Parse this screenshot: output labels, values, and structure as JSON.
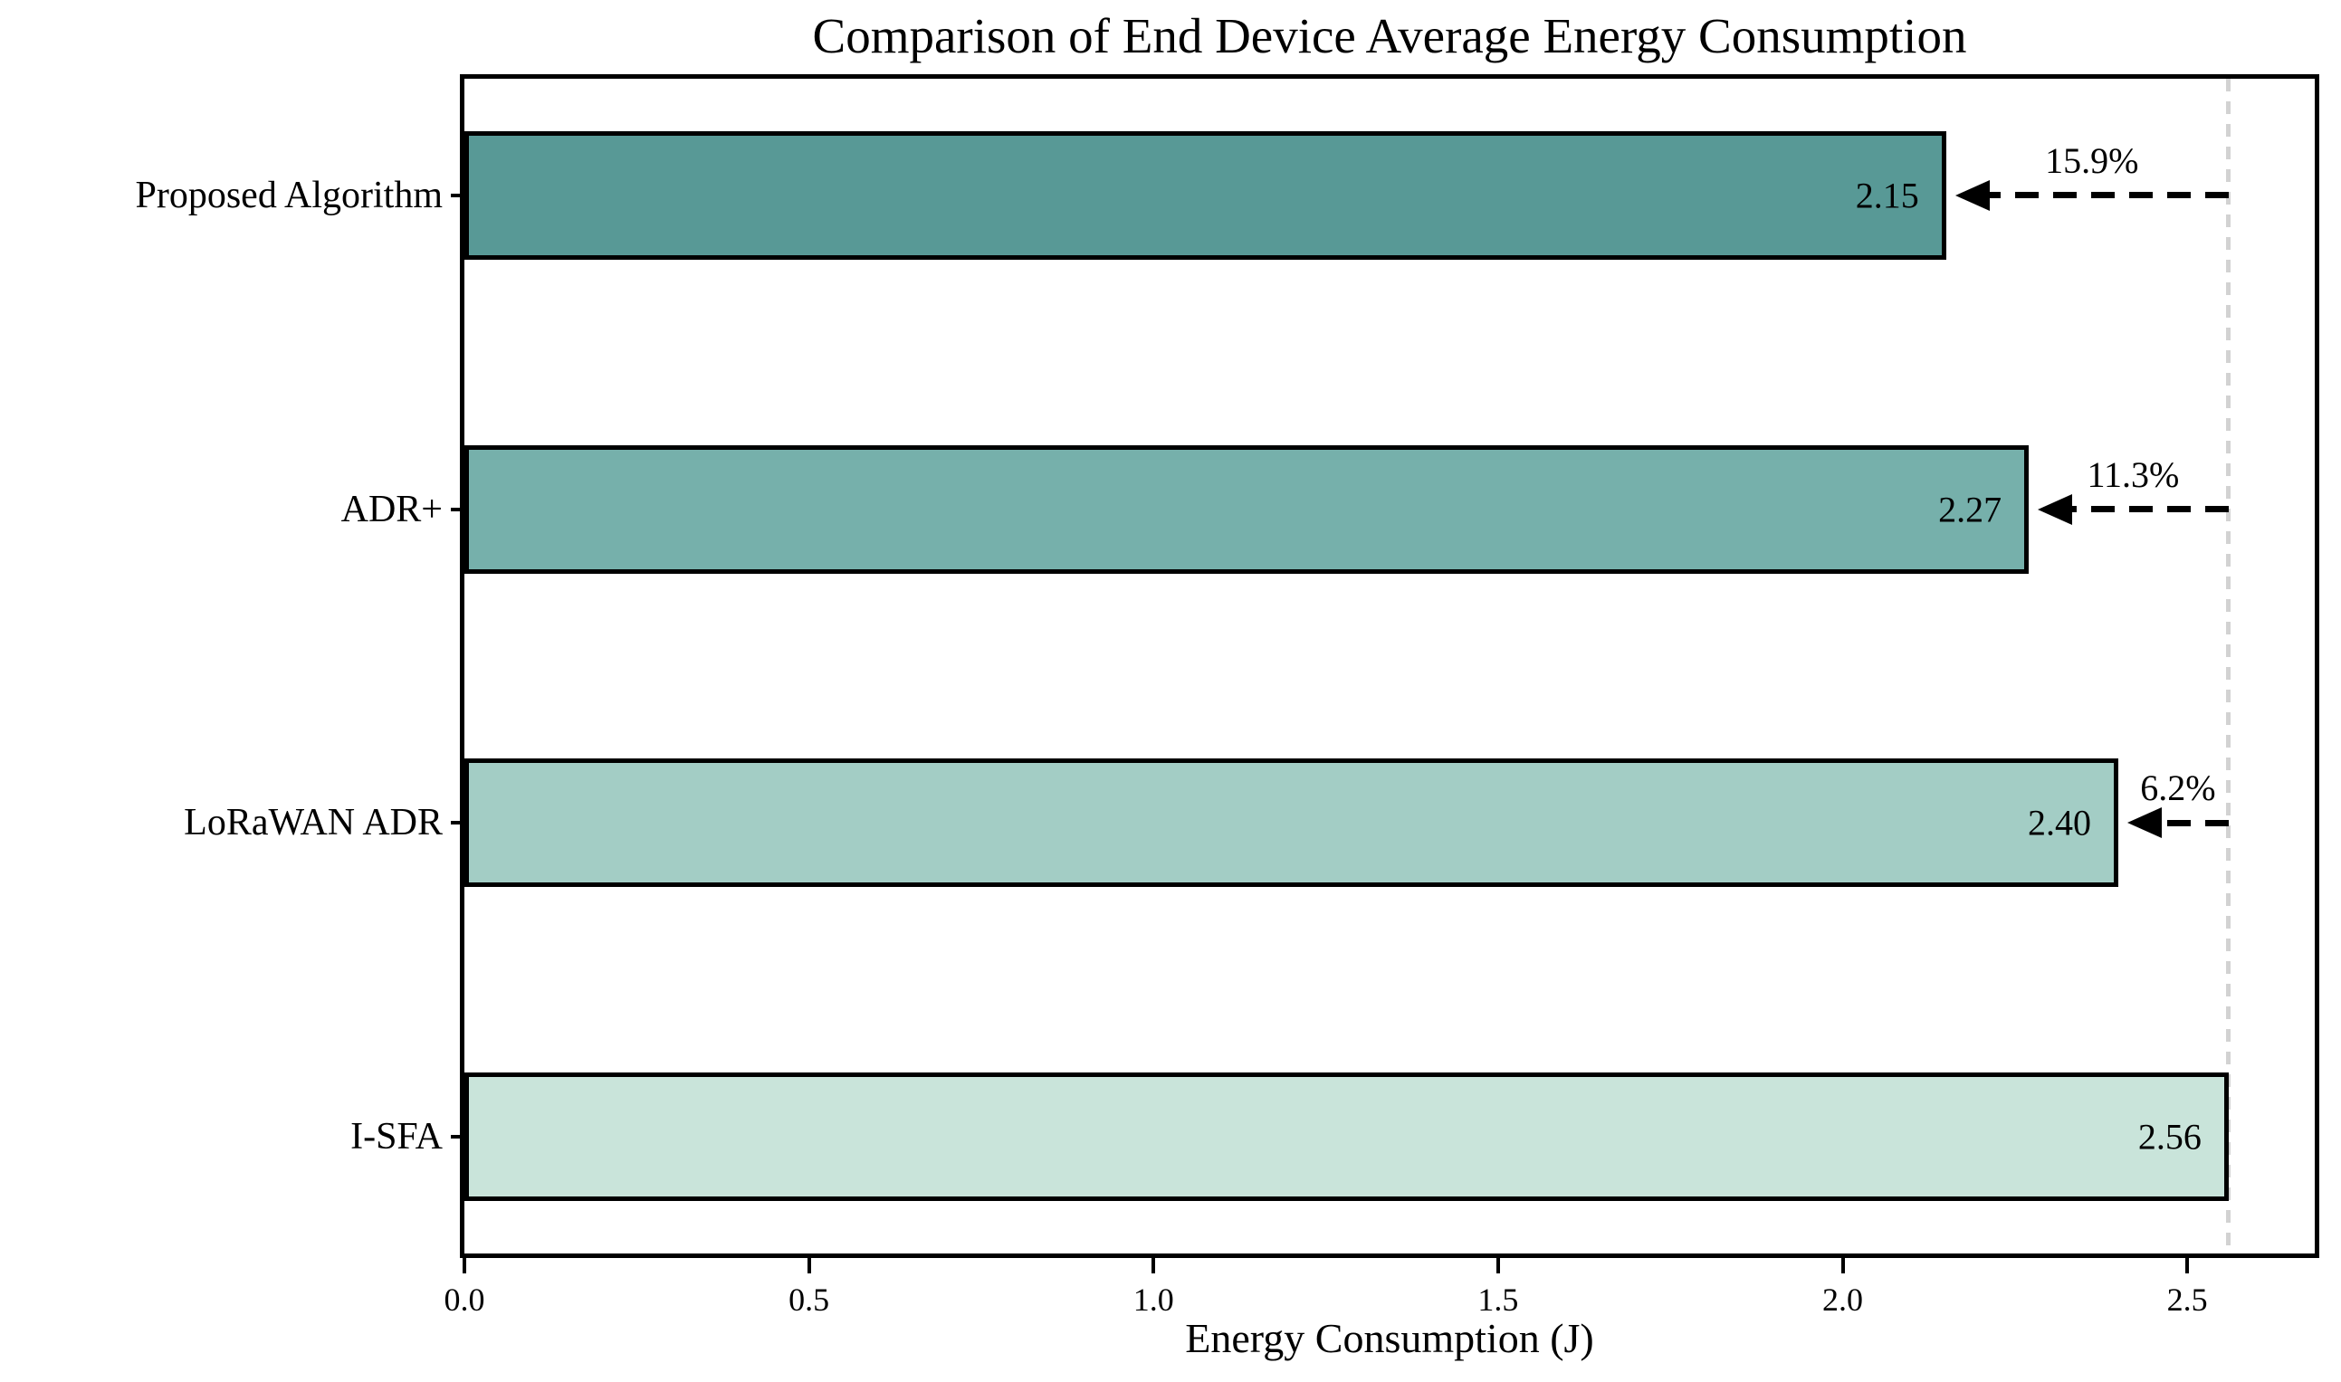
{
  "chart_data": {
    "type": "bar",
    "orientation": "horizontal",
    "title": "Comparison of End Device Average Energy Consumption",
    "xlabel": "Energy Consumption (J)",
    "categories": [
      "Proposed Algorithm",
      "ADR+",
      "LoRaWAN ADR",
      "I-SFA"
    ],
    "values": [
      2.15,
      2.27,
      2.4,
      2.56
    ],
    "value_labels": [
      "2.15",
      "2.27",
      "2.40",
      "2.56"
    ],
    "bar_colors": [
      "#589996",
      "#76b0ab",
      "#a3cdc5",
      "#c9e4da"
    ],
    "bar_edge_color": "#000000",
    "annotations": [
      {
        "category_index": 0,
        "label": "15.9%"
      },
      {
        "category_index": 1,
        "label": "11.3%"
      },
      {
        "category_index": 2,
        "label": "6.2%"
      }
    ],
    "baseline": {
      "value": 2.56,
      "style": "dashed",
      "color": "#d2d2d2"
    },
    "xlim": [
      0,
      2.685
    ],
    "xticks": [
      0.0,
      0.5,
      1.0,
      1.5,
      2.0,
      2.5
    ],
    "xtick_labels": [
      "0.0",
      "0.5",
      "1.0",
      "1.5",
      "2.0",
      "2.5"
    ],
    "grid": false,
    "legend": "none",
    "bar_height_frac": 0.41,
    "outer_margin_frac": 0.372
  }
}
